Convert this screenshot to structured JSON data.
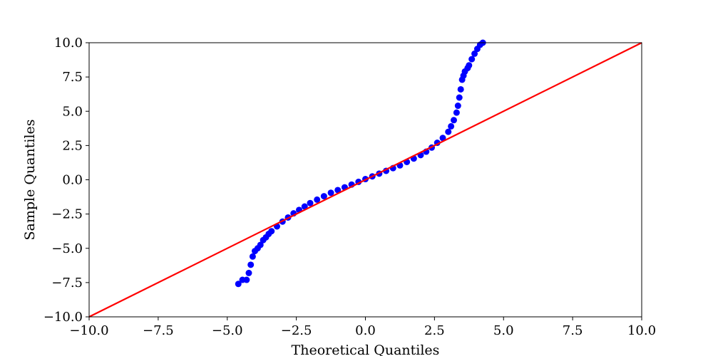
{
  "chart_data": {
    "type": "scatter",
    "title": "",
    "xlabel": "Theoretical Quantiles",
    "ylabel": "Sample Quantiles",
    "xlim": [
      -10,
      10
    ],
    "ylim": [
      -10,
      10
    ],
    "grid": false,
    "xticks": [
      -10,
      -7.5,
      -5,
      -2.5,
      0,
      2.5,
      5,
      7.5,
      10
    ],
    "yticks": [
      -10,
      -7.5,
      -5,
      -2.5,
      0,
      2.5,
      5,
      7.5,
      10
    ],
    "xtick_labels": [
      "−10.0",
      "−7.5",
      "−5.0",
      "−2.5",
      "0.0",
      "2.5",
      "5.0",
      "7.5",
      "10.0"
    ],
    "ytick_labels": [
      "−10.0",
      "−7.5",
      "−5.0",
      "−2.5",
      "0.0",
      "2.5",
      "5.0",
      "7.5",
      "10.0"
    ],
    "series": [
      {
        "kind": "points",
        "color": "#0000ff",
        "x": [
          -4.6,
          -4.45,
          -4.3,
          -4.22,
          -4.15,
          -4.08,
          -4.0,
          -3.9,
          -3.8,
          -3.7,
          -3.6,
          -3.5,
          -3.4,
          -3.2,
          -3.0,
          -2.8,
          -2.6,
          -2.4,
          -2.2,
          -2.0,
          -1.75,
          -1.5,
          -1.25,
          -1.0,
          -0.75,
          -0.5,
          -0.25,
          0.0,
          0.25,
          0.5,
          0.75,
          1.0,
          1.25,
          1.5,
          1.75,
          2.0,
          2.2,
          2.4,
          2.6,
          2.8,
          3.0,
          3.1,
          3.2,
          3.3,
          3.35,
          3.4,
          3.45,
          3.5,
          3.55,
          3.6,
          3.7,
          3.75,
          3.85,
          3.95,
          4.05,
          4.15,
          4.25
        ],
        "y": [
          -7.6,
          -7.3,
          -7.3,
          -6.8,
          -6.2,
          -5.6,
          -5.2,
          -5.0,
          -4.75,
          -4.4,
          -4.2,
          -3.95,
          -3.75,
          -3.4,
          -3.05,
          -2.75,
          -2.45,
          -2.2,
          -1.95,
          -1.7,
          -1.45,
          -1.2,
          -0.95,
          -0.75,
          -0.55,
          -0.35,
          -0.15,
          0.05,
          0.25,
          0.45,
          0.65,
          0.85,
          1.05,
          1.3,
          1.55,
          1.8,
          2.05,
          2.35,
          2.7,
          3.05,
          3.5,
          3.9,
          4.35,
          4.9,
          5.4,
          6.0,
          6.6,
          7.3,
          7.6,
          7.9,
          8.15,
          8.35,
          8.8,
          9.2,
          9.55,
          9.85,
          10.0
        ]
      },
      {
        "kind": "line",
        "color": "#ff0000",
        "x": [
          -10,
          10
        ],
        "y": [
          -10,
          10
        ]
      }
    ]
  }
}
